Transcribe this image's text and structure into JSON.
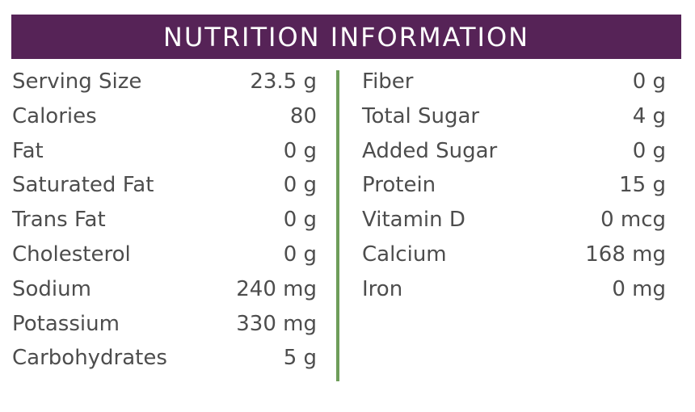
{
  "header": {
    "title": "NUTRITION INFORMATION"
  },
  "colors": {
    "header_bg": "#562357",
    "divider": "#6e9d5a",
    "text": "#4d4d4d"
  },
  "left_column": [
    {
      "label": "Serving Size",
      "value": "23.5 g"
    },
    {
      "label": "Calories",
      "value": "80"
    },
    {
      "label": "Fat",
      "value": "0 g"
    },
    {
      "label": "Saturated Fat",
      "value": "0 g"
    },
    {
      "label": "Trans Fat",
      "value": "0 g"
    },
    {
      "label": "Cholesterol",
      "value": "0 g"
    },
    {
      "label": "Sodium",
      "value": "240 mg"
    },
    {
      "label": "Potassium",
      "value": "330 mg"
    },
    {
      "label": "Carbohydrates",
      "value": "5 g"
    }
  ],
  "right_column": [
    {
      "label": "Fiber",
      "value": "0 g"
    },
    {
      "label": "Total Sugar",
      "value": "4 g"
    },
    {
      "label": "Added Sugar",
      "value": "0 g"
    },
    {
      "label": "Protein",
      "value": "15 g"
    },
    {
      "label": "Vitamin D",
      "value": "0 mcg"
    },
    {
      "label": "Calcium",
      "value": "168 mg"
    },
    {
      "label": "Iron",
      "value": "0 mg"
    }
  ]
}
